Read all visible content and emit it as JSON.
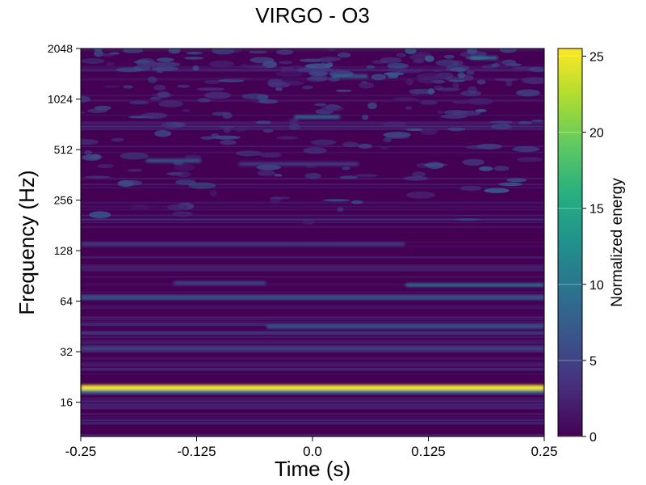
{
  "chart_data": {
    "type": "heatmap",
    "title": "VIRGO - O3",
    "xlabel": "Time (s)",
    "ylabel": "Frequency (Hz)",
    "xlim": [
      -0.25,
      0.25
    ],
    "ylim": [
      10,
      2048
    ],
    "y_scale": "log2",
    "x_ticks": [
      -0.25,
      -0.125,
      0.0,
      0.125,
      0.25
    ],
    "x_tick_labels": [
      "-0.25",
      "-0.125",
      "0.0",
      "0.125",
      "0.25"
    ],
    "y_ticks": [
      16,
      32,
      64,
      128,
      256,
      512,
      1024,
      2048
    ],
    "y_tick_labels": [
      "16",
      "32",
      "64",
      "128",
      "256",
      "512",
      "1024",
      "2048"
    ],
    "colorbar": {
      "label": "Normalized energy",
      "range": [
        0,
        25.5
      ],
      "ticks": [
        0,
        5,
        10,
        15,
        20,
        25
      ],
      "tick_labels": [
        "0",
        "5",
        "10",
        "15",
        "20",
        "25"
      ],
      "colormap": "viridis"
    },
    "grid": false,
    "features": [
      {
        "frequency_hz": 19.5,
        "time_range": [
          -0.25,
          0.25
        ],
        "energy": 25
      },
      {
        "frequency_hz": 18.5,
        "time_range": [
          -0.25,
          0.25
        ],
        "energy": 9
      },
      {
        "frequency_hz": 33.5,
        "time_range": [
          -0.25,
          0.25
        ],
        "energy": 6
      },
      {
        "frequency_hz": 45,
        "time_range": [
          -0.05,
          0.25
        ],
        "energy": 8
      },
      {
        "frequency_hz": 67,
        "time_range": [
          -0.25,
          0.25
        ],
        "energy": 8
      },
      {
        "frequency_hz": 80,
        "time_range": [
          0.1,
          0.25
        ],
        "energy": 10
      },
      {
        "frequency_hz": 82,
        "time_range": [
          -0.15,
          -0.05
        ],
        "energy": 6
      },
      {
        "frequency_hz": 140,
        "time_range": [
          -0.25,
          0.1
        ],
        "energy": 5
      },
      {
        "frequency_hz": 420,
        "time_range": [
          -0.08,
          0.05
        ],
        "energy": 5
      },
      {
        "frequency_hz": 440,
        "time_range": [
          -0.18,
          -0.12
        ],
        "energy": 8
      },
      {
        "frequency_hz": 800,
        "time_range": [
          -0.02,
          0.03
        ],
        "energy": 9
      },
      {
        "frequency_hz": 1400,
        "time_range": [
          0.02,
          0.06
        ],
        "energy": 8
      },
      {
        "frequency_hz": 1800,
        "time_range": [
          0.17,
          0.2
        ],
        "energy": 10
      }
    ]
  }
}
